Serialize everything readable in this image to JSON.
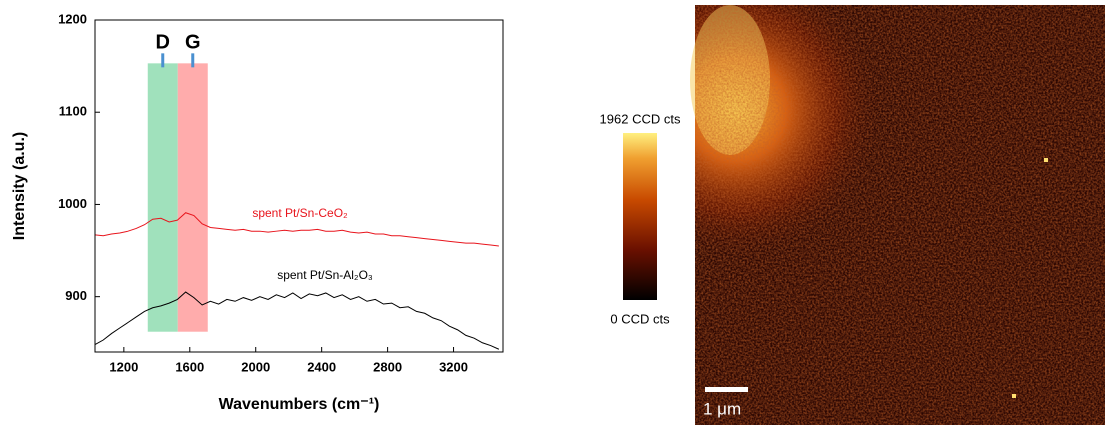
{
  "chart_data": {
    "type": "line",
    "x_label": "Wavenumbers (cm⁻¹)",
    "y_label": "Intensity (a.u.)",
    "xlim": [
      1025,
      3500
    ],
    "ylim": [
      840,
      1200
    ],
    "xticks": [
      1200,
      1600,
      2000,
      2400,
      2800,
      3200
    ],
    "yticks": [
      900,
      1000,
      1100,
      1200
    ],
    "x": [
      1025,
      1075,
      1125,
      1175,
      1225,
      1275,
      1325,
      1375,
      1425,
      1475,
      1525,
      1575,
      1625,
      1675,
      1725,
      1775,
      1825,
      1875,
      1925,
      1975,
      2025,
      2075,
      2125,
      2175,
      2225,
      2275,
      2325,
      2375,
      2425,
      2475,
      2525,
      2575,
      2625,
      2675,
      2725,
      2775,
      2825,
      2875,
      2925,
      2975,
      3025,
      3075,
      3125,
      3175,
      3225,
      3275,
      3325,
      3375,
      3425,
      3475
    ],
    "series": [
      {
        "name": "spent Pt/Sn-CeO₂",
        "color": "#e8141c",
        "values": [
          967,
          966,
          968,
          969,
          971,
          974,
          978,
          984,
          985,
          981,
          983,
          991,
          988,
          979,
          975,
          974,
          973,
          972,
          973,
          971,
          971,
          970,
          971,
          972,
          971,
          972,
          972,
          973,
          971,
          971,
          972,
          970,
          969,
          970,
          968,
          968,
          966,
          966,
          965,
          964,
          963,
          962,
          961,
          960,
          959,
          958,
          958,
          957,
          956,
          955
        ]
      },
      {
        "name": "spent Pt/Sn-Al₂O₃",
        "color": "#000000",
        "values": [
          848,
          853,
          860,
          866,
          872,
          878,
          884,
          888,
          890,
          893,
          897,
          905,
          899,
          891,
          895,
          892,
          897,
          895,
          899,
          896,
          900,
          897,
          902,
          899,
          904,
          898,
          903,
          901,
          904,
          899,
          902,
          897,
          900,
          895,
          897,
          892,
          893,
          888,
          889,
          884,
          882,
          877,
          874,
          868,
          864,
          858,
          855,
          850,
          847,
          843
        ]
      }
    ],
    "bands": [
      {
        "label": "D",
        "x": [
          1345,
          1527
        ],
        "y": [
          862,
          1153
        ],
        "color": "#8fdcb0"
      },
      {
        "label": "G",
        "x": [
          1527,
          1709
        ],
        "y": [
          862,
          1153
        ],
        "color": "#ff9d9d"
      }
    ]
  },
  "map": {
    "colorbar_max_label": "1962 CCD cts",
    "colorbar_min_label": "0 CCD cts",
    "scalebar_label": "1 μm"
  }
}
